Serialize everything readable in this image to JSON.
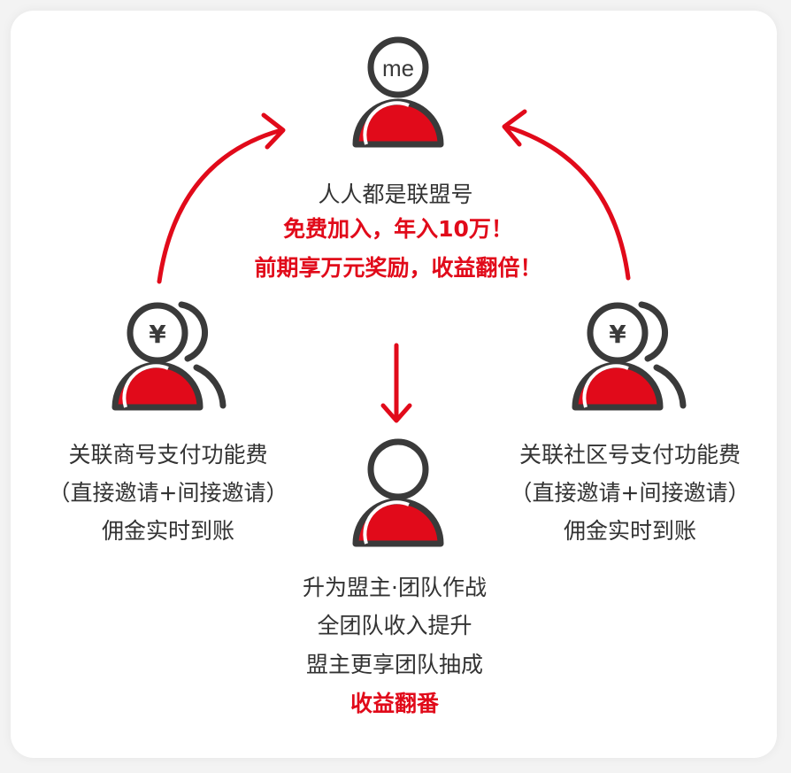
{
  "colors": {
    "accent": "#e10a1a",
    "outline": "#3a3a3a",
    "text": "#333333",
    "background": "#ffffff"
  },
  "top": {
    "avatar_label": "me",
    "line1": "人人都是联盟号",
    "line2": "免费加入，年入10万！",
    "line3": "前期享万元奖励，收益翻倍！"
  },
  "left": {
    "avatar_label": "¥",
    "line1": "关联商号支付功能费",
    "line2": "（直接邀请+间接邀请）",
    "line3": "佣金实时到账"
  },
  "right": {
    "avatar_label": "¥",
    "line1": "关联社区号支付功能费",
    "line2": "（直接邀请+间接邀请）",
    "line3": "佣金实时到账"
  },
  "bottom": {
    "line1": "升为盟主·团队作战",
    "line2": "全团队收入提升",
    "line3": "盟主更享团队抽成",
    "line4": "收益翻番"
  },
  "arrows": {
    "left_to_top": "curved arrow",
    "right_to_top": "curved arrow",
    "top_to_bottom": "down arrow"
  }
}
